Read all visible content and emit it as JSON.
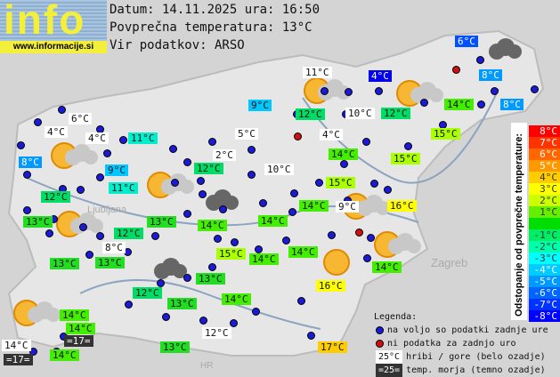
{
  "header": {
    "logo_text": "info",
    "logo_url": "www.informacije.si",
    "date_line": "Datum: 14.11.2025 ura: 16:50",
    "avg_temp_line": "Povprečna temperatura: 13°C",
    "source_line": "Vir podatkov: ARSO"
  },
  "stations": [
    {
      "text": "6°C",
      "bg": "#0050ff"
    },
    {
      "text": "8°C",
      "bg": "#0099ff"
    },
    {
      "text": "8°C",
      "bg": "#0099ff"
    },
    {
      "text": "4°C",
      "bg": "#0000ee"
    },
    {
      "text": "11°C",
      "bg": "#ffffff"
    },
    {
      "text": "9°C",
      "bg": "#00c8ff"
    },
    {
      "text": "12°C",
      "bg": "#00dd66"
    },
    {
      "text": "10°C",
      "bg": "#ffffff"
    },
    {
      "text": "12°C",
      "bg": "#00dd66"
    },
    {
      "text": "14°C",
      "bg": "#44ee00"
    },
    {
      "text": "15°C",
      "bg": "#aaff00"
    },
    {
      "text": "6°C",
      "bg": "#ffffff"
    },
    {
      "text": "4°C",
      "bg": "#ffffff"
    },
    {
      "text": "4°C",
      "bg": "#ffffff"
    },
    {
      "text": "11°C",
      "bg": "#00eecc"
    },
    {
      "text": "5°C",
      "bg": "#ffffff"
    },
    {
      "text": "4°C",
      "bg": "#ffffff"
    },
    {
      "text": "8°C",
      "bg": "#0099ff"
    },
    {
      "text": "9°C",
      "bg": "#00c8ff"
    },
    {
      "text": "2°C",
      "bg": "#ffffff"
    },
    {
      "text": "12°C",
      "bg": "#00dd66"
    },
    {
      "text": "14°C",
      "bg": "#44ee00"
    },
    {
      "text": "15°C",
      "bg": "#aaff00"
    },
    {
      "text": "10°C",
      "bg": "#ffffff"
    },
    {
      "text": "11°C",
      "bg": "#00eecc"
    },
    {
      "text": "12°C",
      "bg": "#00dd66"
    },
    {
      "text": "15°C",
      "bg": "#aaff00"
    },
    {
      "text": "13°C",
      "bg": "#22dd22"
    },
    {
      "text": "13°C",
      "bg": "#22dd22"
    },
    {
      "text": "14°C",
      "bg": "#44ee00"
    },
    {
      "text": "14°C",
      "bg": "#44ee00"
    },
    {
      "text": "14°C",
      "bg": "#44ee00"
    },
    {
      "text": "9°C",
      "bg": "#ffffff"
    },
    {
      "text": "16°C",
      "bg": "#ffff00"
    },
    {
      "text": "12°C",
      "bg": "#00dd66"
    },
    {
      "text": "8°C",
      "bg": "#ffffff"
    },
    {
      "text": "13°C",
      "bg": "#22dd22"
    },
    {
      "text": "13°C",
      "bg": "#22dd22"
    },
    {
      "text": "15°C",
      "bg": "#aaff00"
    },
    {
      "text": "14°C",
      "bg": "#44ee00"
    },
    {
      "text": "14°C",
      "bg": "#44ee00"
    },
    {
      "text": "14°C",
      "bg": "#44ee00"
    },
    {
      "text": "13°C",
      "bg": "#22dd22"
    },
    {
      "text": "16°C",
      "bg": "#ffff00"
    },
    {
      "text": "12°C",
      "bg": "#00dd66"
    },
    {
      "text": "13°C",
      "bg": "#22dd22"
    },
    {
      "text": "14°C",
      "bg": "#44ee00"
    },
    {
      "text": "14°C",
      "bg": "#44ee00"
    },
    {
      "text": "14°C",
      "bg": "#44ee00"
    },
    {
      "text": "12°C",
      "bg": "#ffffff"
    },
    {
      "text": "=17=",
      "bg": "#333333"
    },
    {
      "text": "14°C",
      "bg": "#ffffff"
    },
    {
      "text": "=17=",
      "bg": "#333333"
    },
    {
      "text": "14°C",
      "bg": "#44ee00"
    },
    {
      "text": "13°C",
      "bg": "#22dd22"
    },
    {
      "text": "17°C",
      "bg": "#ffcc00"
    }
  ],
  "scale": {
    "title": "Odstopanje od povprečne temperature:",
    "items": [
      {
        "label": "8°C",
        "bg": "#ff0000"
      },
      {
        "label": "7°C",
        "bg": "#ff3300"
      },
      {
        "label": "6°C",
        "bg": "#ff6600"
      },
      {
        "label": "5°C",
        "bg": "#ff9900"
      },
      {
        "label": "4°C",
        "bg": "#ffcc00"
      },
      {
        "label": "3°C",
        "bg": "#ffff00"
      },
      {
        "label": "2°C",
        "bg": "#ccff00"
      },
      {
        "label": "1°C",
        "bg": "#66ee00"
      },
      {
        "label": "",
        "bg": "#00dd00"
      },
      {
        "label": "-1°C",
        "bg": "#00ee66"
      },
      {
        "label": "-2°C",
        "bg": "#00ffaa"
      },
      {
        "label": "-3°C",
        "bg": "#00ffff"
      },
      {
        "label": "-4°C",
        "bg": "#00ccff"
      },
      {
        "label": "-5°C",
        "bg": "#0099ff"
      },
      {
        "label": "-6°C",
        "bg": "#0066ff"
      },
      {
        "label": "-7°C",
        "bg": "#0033ff"
      },
      {
        "label": "-8°C",
        "bg": "#0000ff"
      }
    ]
  },
  "legend": {
    "title": "Legenda:",
    "available": "na voljo so podatki zadnje ure",
    "unavailable": "ni podatka za zadnjo uro",
    "mountain_sample": "25°C",
    "mountain_text": "hribi / gore (belo ozadje)",
    "sea_sample": "=25=",
    "sea_text": "temp. morja (temno ozadje)"
  },
  "map_labels": {
    "ljubljana": "Ljubljana",
    "zagreb": "Zagreb",
    "hr": "HR"
  }
}
